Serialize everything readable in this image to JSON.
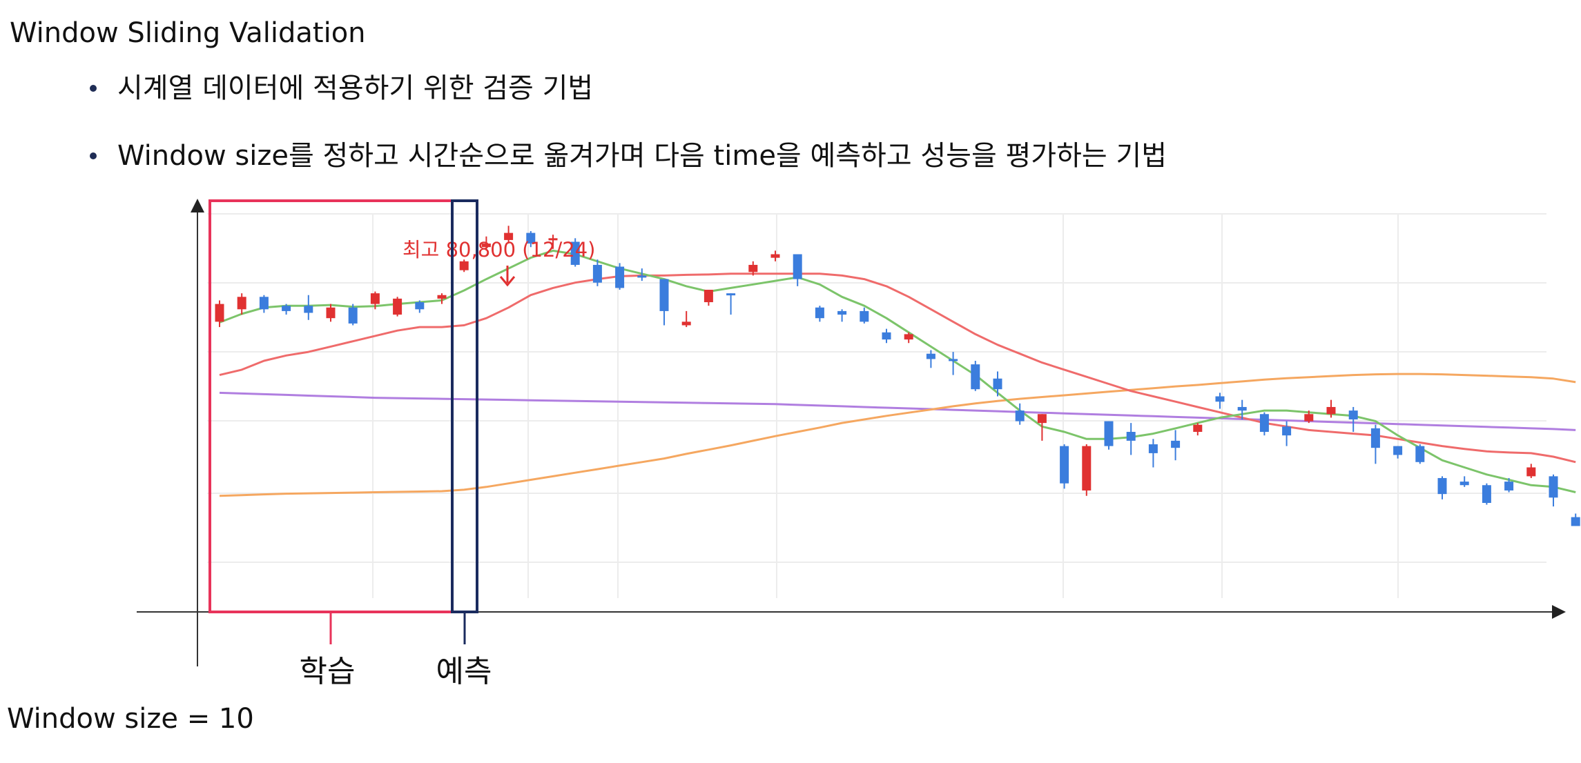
{
  "title": "Window Sliding Validation",
  "bullets": [
    "시계열 데이터에 적용하기 위한 검증 기법",
    "Window size를 정하고 시간순으로 옮겨가며 다음 time을 예측하고 성능을 평가하는 기법"
  ],
  "footer": "Window size = 10",
  "labels": {
    "train": "학습",
    "predict": "예측"
  },
  "annotation": "최고 80,800 (12/24)",
  "colors": {
    "up": "#e03131",
    "down": "#3b7ddd",
    "ma_green": "#7cc46a",
    "ma_red": "#ef6b6b",
    "ma_orange": "#f5a760",
    "ma_purple": "#b07ee0",
    "train_box": "#e8335a",
    "predict_box": "#1a2b5e",
    "axis": "#444444",
    "grid": "#ececec"
  },
  "chart_data": {
    "type": "candlestick",
    "candles": [
      [
        -9.0,
        -4.0,
        -10.5,
        -3.0
      ],
      [
        -5.5,
        -2.0,
        -7.0,
        -1.0
      ],
      [
        -2.0,
        -5.5,
        -6.5,
        -1.5
      ],
      [
        -4.5,
        -6.0,
        -7.0,
        -4.0
      ],
      [
        -4.5,
        -6.5,
        -8.5,
        -1.5
      ],
      [
        -8.0,
        -5.0,
        -9.0,
        -4.0
      ],
      [
        -5.0,
        -9.5,
        -10.0,
        -4.0
      ],
      [
        -4.0,
        -1.0,
        -5.5,
        -0.5
      ],
      [
        -7.0,
        -2.5,
        -7.5,
        -2.0
      ],
      [
        -3.5,
        -5.5,
        -6.5,
        -3.0
      ],
      [
        -2.5,
        -1.5,
        -4.0,
        -1.0
      ],
      [
        5.5,
        8.0,
        5.0,
        8.5
      ],
      [
        12.0,
        13.0,
        11.0,
        15.0
      ],
      [
        14.0,
        16.0,
        13.0,
        18.0
      ],
      [
        16.0,
        13.0,
        12.0,
        16.5
      ],
      [
        14.0,
        14.5,
        11.5,
        15.5
      ],
      [
        13.5,
        7.0,
        6.5,
        14.5
      ],
      [
        7.0,
        2.0,
        1.0,
        8.5
      ],
      [
        6.5,
        0.5,
        0.0,
        7.5
      ],
      [
        4.0,
        3.5,
        2.5,
        6.0
      ],
      [
        3.0,
        -6.0,
        -10.0,
        3.0
      ],
      [
        -10.0,
        -9.0,
        -10.5,
        -6.0
      ],
      [
        -3.5,
        0.0,
        -4.5,
        0.0
      ],
      [
        -1.0,
        -1.5,
        -7.0,
        -1.0
      ],
      [
        5.0,
        7.0,
        4.0,
        8.0
      ],
      [
        9.0,
        10.0,
        8.0,
        11.0
      ],
      [
        10.0,
        3.0,
        1.0,
        10.0
      ],
      [
        -5.0,
        -8.0,
        -9.0,
        -4.5
      ],
      [
        -6.0,
        -7.0,
        -9.0,
        -5.5
      ],
      [
        -6.0,
        -9.0,
        -9.5,
        -5.0
      ],
      [
        -12.0,
        -14.0,
        -15.0,
        -11.0
      ],
      [
        -14.0,
        -12.5,
        -15.0,
        -12.0
      ],
      [
        -18.0,
        -19.5,
        -22.0,
        -17.0
      ],
      [
        -19.5,
        -20.0,
        -24.0,
        -17.5
      ],
      [
        -21.0,
        -28.0,
        -28.5,
        -20.0
      ],
      [
        -25.0,
        -28.0,
        -30.0,
        -23.0
      ],
      [
        -34.0,
        -37.0,
        -38.0,
        -32.0
      ],
      [
        -37.5,
        -35.0,
        -42.5,
        -35.0
      ],
      [
        -44.0,
        -54.5,
        -56.0,
        -43.5
      ],
      [
        -56.5,
        -44.0,
        -58.0,
        -43.5
      ],
      [
        -37.0,
        -44.0,
        -45.0,
        -37.0
      ],
      [
        -40.0,
        -42.5,
        -46.5,
        -37.5
      ],
      [
        -43.5,
        -46.0,
        -50.0,
        -42.0
      ],
      [
        -42.5,
        -44.5,
        -48.0,
        -39.5
      ],
      [
        -40.0,
        -38.0,
        -41.0,
        -37.5
      ],
      [
        -30.0,
        -31.5,
        -33.5,
        -29.0
      ],
      [
        -33.0,
        -34.0,
        -36.5,
        -31.0
      ],
      [
        -35.0,
        -40.0,
        -41.0,
        -34.5
      ],
      [
        -38.5,
        -41.0,
        -44.0,
        -37.0
      ],
      [
        -37.0,
        -35.0,
        -37.5,
        -34.0
      ],
      [
        -35.0,
        -33.0,
        -36.0,
        -31.0
      ],
      [
        -34.0,
        -36.5,
        -40.0,
        -33.0
      ],
      [
        -39.0,
        -44.5,
        -49.0,
        -38.0
      ],
      [
        -44.0,
        -46.5,
        -47.5,
        -44.0
      ],
      [
        -44.0,
        -48.5,
        -49.0,
        -43.5
      ],
      [
        -53.0,
        -57.5,
        -59.0,
        -52.5
      ],
      [
        -54.0,
        -55.0,
        -55.5,
        -52.5
      ],
      [
        -55.0,
        -60.0,
        -60.5,
        -54.5
      ],
      [
        -54.0,
        -56.5,
        -57.0,
        -53.0
      ],
      [
        -52.5,
        -50.0,
        -53.0,
        -49.0
      ],
      [
        -52.5,
        -58.5,
        -61.0,
        -52.0
      ],
      [
        -64.0,
        -66.5,
        -66.5,
        -63.0
      ]
    ],
    "ma_green": [
      -9.2,
      -6.8,
      -5.0,
      -4.5,
      -4.5,
      -4.3,
      -4.8,
      -4.6,
      -4.0,
      -3.5,
      -3.0,
      -0.2,
      3.0,
      6.0,
      9.0,
      11.0,
      10.0,
      8.0,
      6.0,
      4.5,
      3.0,
      1.0,
      -0.5,
      0.5,
      1.5,
      2.5,
      3.5,
      1.5,
      -2.0,
      -4.5,
      -8.0,
      -12.0,
      -16.0,
      -20.0,
      -24.0,
      -29.0,
      -34.0,
      -38.5,
      -40.0,
      -42.0,
      -42.0,
      -41.5,
      -40.5,
      -39.0,
      -37.5,
      -36.0,
      -35.0,
      -34.0,
      -34.0,
      -34.5,
      -35.0,
      -35.5,
      -37.0,
      -41.0,
      -44.5,
      -48.0,
      -50.0,
      -52.0,
      -53.5,
      -55.0,
      -55.5,
      -57.0
    ],
    "ma_red": [
      -24.0,
      -22.5,
      -20.0,
      -18.5,
      -17.5,
      -16.0,
      -14.5,
      -13.0,
      -11.5,
      -10.5,
      -10.5,
      -10.0,
      -8.0,
      -5.0,
      -1.5,
      0.5,
      2.0,
      3.0,
      3.8,
      4.0,
      4.0,
      4.2,
      4.3,
      4.5,
      4.5,
      4.5,
      4.5,
      4.5,
      4.0,
      3.0,
      1.0,
      -2.0,
      -5.5,
      -9.0,
      -12.5,
      -15.5,
      -18.0,
      -20.5,
      -22.5,
      -24.5,
      -26.5,
      -28.5,
      -30.0,
      -31.5,
      -33.0,
      -34.5,
      -36.0,
      -37.5,
      -38.5,
      -39.5,
      -40.0,
      -40.5,
      -41.0,
      -42.0,
      -43.0,
      -44.0,
      -44.8,
      -45.5,
      -45.8,
      -46.0,
      -47.0,
      -48.5
    ],
    "ma_orange": [
      -58.0,
      -57.8,
      -57.6,
      -57.4,
      -57.3,
      -57.2,
      -57.1,
      -57.0,
      -56.9,
      -56.8,
      -56.7,
      -56.3,
      -55.5,
      -54.5,
      -53.5,
      -52.5,
      -51.5,
      -50.5,
      -49.5,
      -48.5,
      -47.5,
      -46.2,
      -45.0,
      -43.8,
      -42.5,
      -41.2,
      -40.0,
      -38.8,
      -37.5,
      -36.5,
      -35.5,
      -34.6,
      -33.7,
      -32.8,
      -32.0,
      -31.3,
      -30.7,
      -30.2,
      -29.7,
      -29.2,
      -28.7,
      -28.2,
      -27.7,
      -27.2,
      -26.8,
      -26.3,
      -25.8,
      -25.3,
      -24.9,
      -24.6,
      -24.3,
      -24.0,
      -23.8,
      -23.7,
      -23.7,
      -23.8,
      -24.0,
      -24.2,
      -24.4,
      -24.6,
      -25.0,
      -26.0
    ],
    "ma_purple": [
      -29.0,
      -29.2,
      -29.4,
      -29.6,
      -29.8,
      -30.0,
      -30.2,
      -30.4,
      -30.5,
      -30.6,
      -30.7,
      -30.8,
      -30.9,
      -31.0,
      -31.1,
      -31.2,
      -31.3,
      -31.4,
      -31.5,
      -31.6,
      -31.7,
      -31.8,
      -31.9,
      -32.0,
      -32.1,
      -32.2,
      -32.4,
      -32.6,
      -32.8,
      -33.0,
      -33.2,
      -33.4,
      -33.6,
      -33.8,
      -34.0,
      -34.2,
      -34.4,
      -34.6,
      -34.8,
      -35.0,
      -35.2,
      -35.4,
      -35.6,
      -35.8,
      -36.0,
      -36.2,
      -36.4,
      -36.6,
      -36.8,
      -37.0,
      -37.2,
      -37.4,
      -37.6,
      -37.8,
      -38.0,
      -38.2,
      -38.4,
      -38.6,
      -38.8,
      -39.0,
      -39.2,
      -39.5
    ]
  }
}
